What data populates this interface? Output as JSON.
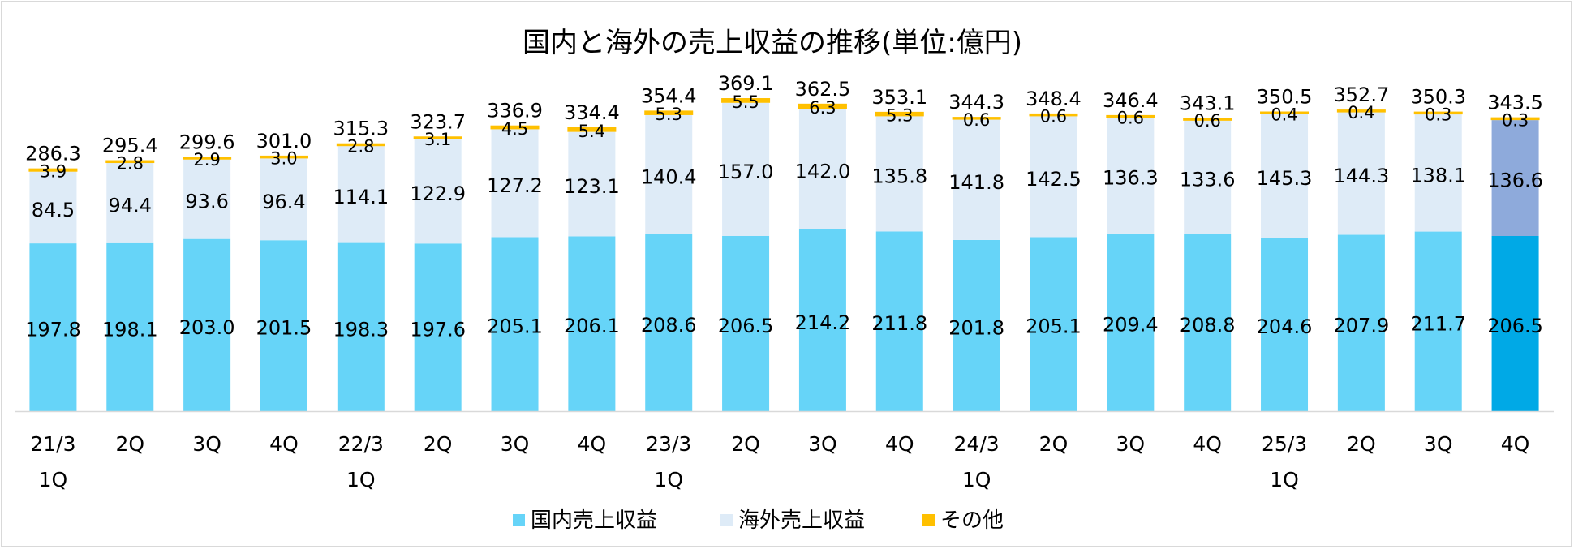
{
  "chart_data": {
    "type": "bar",
    "stacked": true,
    "title": "国内と海外の売上収益の推移(単位:億円)",
    "categories": [
      [
        "21/3",
        "1Q"
      ],
      [
        "2Q"
      ],
      [
        "3Q"
      ],
      [
        "4Q"
      ],
      [
        "22/3",
        "1Q"
      ],
      [
        "2Q"
      ],
      [
        "3Q"
      ],
      [
        "4Q"
      ],
      [
        "23/3",
        "1Q"
      ],
      [
        "2Q"
      ],
      [
        "3Q"
      ],
      [
        "4Q"
      ],
      [
        "24/3",
        "1Q"
      ],
      [
        "2Q"
      ],
      [
        "3Q"
      ],
      [
        "4Q"
      ],
      [
        "25/3",
        "1Q"
      ],
      [
        "2Q"
      ],
      [
        "3Q"
      ],
      [
        "4Q"
      ]
    ],
    "series": [
      {
        "name": "国内売上収益",
        "color": "#66d4f8",
        "highlight_color": "#00a9e6",
        "values": [
          197.8,
          198.1,
          203.0,
          201.5,
          198.3,
          197.6,
          205.1,
          206.1,
          208.6,
          206.5,
          214.2,
          211.8,
          201.8,
          205.1,
          209.4,
          208.8,
          204.6,
          207.9,
          211.7,
          206.5
        ]
      },
      {
        "name": "海外売上収益",
        "color": "#deebf7",
        "highlight_color": "#8eaadb",
        "values": [
          84.5,
          94.4,
          93.6,
          96.4,
          114.1,
          122.9,
          127.2,
          123.1,
          140.4,
          157.0,
          142.0,
          135.8,
          141.8,
          142.5,
          136.3,
          133.6,
          145.3,
          144.3,
          138.1,
          136.6
        ]
      },
      {
        "name": "その他",
        "color": "#ffc000",
        "highlight_color": "#ffc000",
        "values": [
          3.9,
          2.8,
          2.9,
          3.0,
          2.8,
          3.1,
          4.5,
          5.4,
          5.3,
          5.5,
          6.3,
          5.3,
          0.6,
          0.6,
          0.6,
          0.6,
          0.4,
          0.4,
          0.3,
          0.3
        ]
      }
    ],
    "totals": [
      286.3,
      295.4,
      299.6,
      301.0,
      315.3,
      323.7,
      336.9,
      334.4,
      354.4,
      369.1,
      362.5,
      353.1,
      344.3,
      348.4,
      346.4,
      343.1,
      350.5,
      352.7,
      350.3,
      343.5
    ],
    "highlight_index": 19,
    "ylim": [
      0,
      400
    ],
    "grid": false,
    "legend_position": "bottom"
  }
}
